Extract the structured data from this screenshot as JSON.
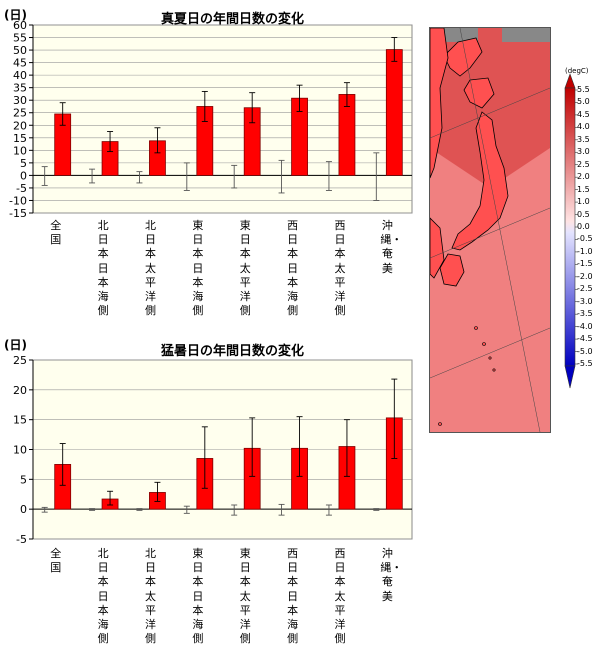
{
  "charts": [
    {
      "unit_label": "(日)",
      "title": "真夏日の年間日数の変化",
      "chart_data": {
        "type": "bar",
        "title": "真夏日の年間日数の変化",
        "ylabel": "(日)",
        "ylim": [
          -15,
          60
        ],
        "yticks": [
          -15,
          -10,
          -5,
          0,
          5,
          10,
          15,
          20,
          25,
          30,
          35,
          40,
          45,
          50,
          55,
          60
        ],
        "categories": [
          "全国",
          "北日本日本海側",
          "北日本太平洋側",
          "東日本日本海側",
          "東日本太平洋側",
          "西日本日本海側",
          "西日本太平洋側",
          "沖縄・奄美"
        ],
        "values": [
          24.5,
          13.5,
          13.8,
          27.5,
          27.0,
          30.8,
          32.3,
          50.2
        ],
        "error_low": [
          20.0,
          9.5,
          9.0,
          21.5,
          21.0,
          25.5,
          27.5,
          45.5
        ],
        "error_high": [
          29.0,
          17.5,
          19.0,
          33.5,
          33.0,
          36.0,
          37.0,
          55.0
        ],
        "baseline_range_low": [
          -4.0,
          -3.0,
          -3.0,
          -6.0,
          -5.0,
          -7.0,
          -6.0,
          -10.0
        ],
        "baseline_range_high": [
          3.5,
          2.5,
          1.5,
          5.0,
          4.0,
          6.0,
          5.5,
          9.0
        ],
        "bar_color": "#ff0000",
        "plot_background": "#ffffee",
        "grid": true
      }
    },
    {
      "unit_label": "(日)",
      "title": "猛暑日の年間日数の変化",
      "chart_data": {
        "type": "bar",
        "title": "猛暑日の年間日数の変化",
        "ylabel": "(日)",
        "ylim": [
          -5,
          25
        ],
        "yticks": [
          -5,
          0,
          5,
          10,
          15,
          20,
          25
        ],
        "categories": [
          "全国",
          "北日本日本海側",
          "北日本太平洋側",
          "東日本日本海側",
          "東日本太平洋側",
          "西日本日本海側",
          "西日本太平洋側",
          "沖縄・奄美"
        ],
        "values": [
          7.5,
          1.7,
          2.8,
          8.5,
          10.2,
          10.2,
          10.5,
          15.3
        ],
        "error_low": [
          4.0,
          0.7,
          1.3,
          3.5,
          5.5,
          5.5,
          5.5,
          8.5
        ],
        "error_high": [
          11.0,
          3.0,
          4.5,
          13.8,
          15.3,
          15.5,
          15.0,
          21.8
        ],
        "baseline_range_low": [
          -0.5,
          -0.2,
          -0.2,
          -0.7,
          -1.0,
          -1.0,
          -1.0,
          -0.2
        ],
        "baseline_range_high": [
          0.3,
          0.1,
          0.1,
          0.5,
          0.7,
          0.8,
          0.7,
          0.1
        ],
        "bar_color": "#ff0000",
        "plot_background": "#ffffee",
        "grid": true
      }
    }
  ],
  "colorbar": {
    "unit_label": "(degC)",
    "labels": [
      "5.5",
      "5.0",
      "4.5",
      "4.0",
      "3.5",
      "3.0",
      "2.5",
      "2.0",
      "1.5",
      "1.0",
      "0.5",
      "0.0",
      "-0.5",
      "-1.0",
      "-1.5",
      "-2.0",
      "-2.5",
      "-3.0",
      "-3.5",
      "-4.0",
      "-4.5",
      "-5.0",
      "-5.5"
    ],
    "warm_dark": "#c00000",
    "warm_light": "#ffe4e4",
    "cool_light": "#e4e4ff",
    "cool_dark": "#0000c0"
  },
  "map": {
    "sea_color": "#f08080",
    "land_color": "#ff5050",
    "nodata_color": "#888888"
  }
}
